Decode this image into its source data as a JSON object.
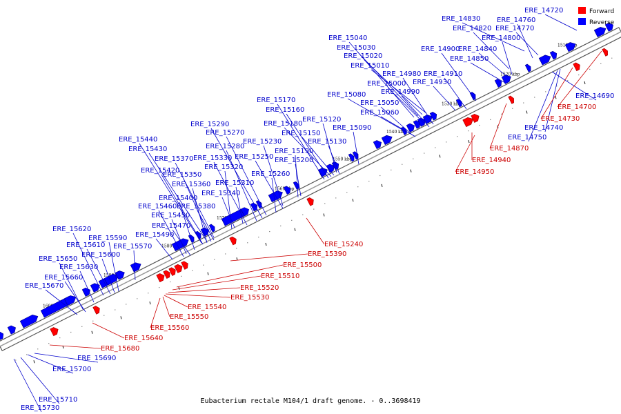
{
  "caption": "Eubacterium rectale M104/1 draft genome. - 0..3698419",
  "legend": {
    "forward_label": "Forward",
    "reverse_label": "Reverse",
    "forward_color": "#ff0000",
    "reverse_color": "#0000ff"
  },
  "scale_marks": [
    "1600 kbp",
    "1590 kbp",
    "1580 kbp",
    "1570 kbp",
    "1560 kbp",
    "1550 kbp",
    "1540 kbp",
    "1530 kbp",
    "1520 kbp",
    "1510 kbp"
  ],
  "forward_genes": [
    "ERE_15240",
    "ERE_15390",
    "ERE_15500",
    "ERE_15510",
    "ERE_15520",
    "ERE_15530",
    "ERE_15540",
    "ERE_15550",
    "ERE_15560",
    "ERE_15640",
    "ERE_15680",
    "ERE_14950",
    "ERE_14940",
    "ERE_14870",
    "ERE_14730",
    "ERE_14700"
  ],
  "reverse_genes": [
    "ERE_14720",
    "ERE_14830",
    "ERE_14760",
    "ERE_14820",
    "ERE_14770",
    "ERE_14800",
    "ERE_14900",
    "ERE_14840",
    "ERE_14850",
    "ERE_15040",
    "ERE_15030",
    "ERE_15020",
    "ERE_15010",
    "ERE_14980",
    "ERE_15000",
    "ERE_14910",
    "ERE_14990",
    "ERE_14930",
    "ERE_15080",
    "ERE_15050",
    "ERE_15060",
    "ERE_15170",
    "ERE_15160",
    "ERE_15120",
    "ERE_15180",
    "ERE_15150",
    "ERE_15090",
    "ERE_15130",
    "ERE_15290",
    "ERE_15270",
    "ERE_15230",
    "ERE_15280",
    "ERE_15190",
    "ERE_15200",
    "ERE_15440",
    "ERE_15430",
    "ERE_15370",
    "ERE_15330",
    "ERE_15250",
    "ERE_15320",
    "ERE_15420",
    "ERE_15350",
    "ERE_15260",
    "ERE_15360",
    "ERE_15310",
    "ERE_15340",
    "ERE_15400",
    "ERE_15460",
    "ERE_15380",
    "ERE_15450",
    "ERE_15470",
    "ERE_15490",
    "ERE_15620",
    "ERE_15590",
    "ERE_15610",
    "ERE_15570",
    "ERE_15600",
    "ERE_15650",
    "ERE_15630",
    "ERE_15660",
    "ERE_15670",
    "ERE_15690",
    "ERE_15700",
    "ERE_15710",
    "ERE_15730",
    "ERE_14690",
    "ERE_14740",
    "ERE_14750"
  ]
}
